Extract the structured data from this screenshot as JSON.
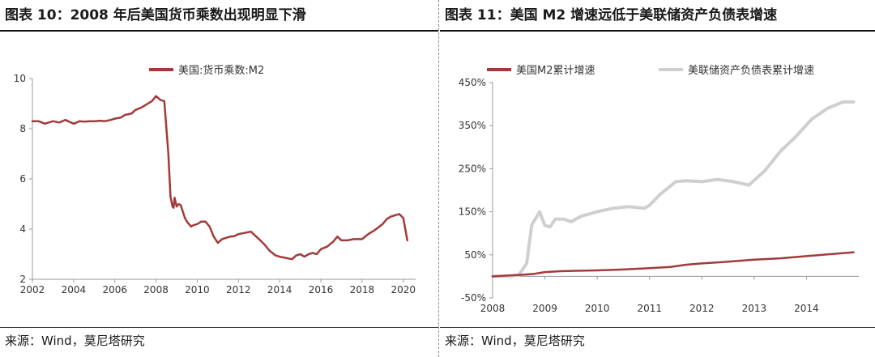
{
  "left": {
    "title": "图表 10：2008 年后美国货币乘数出现明显下滑",
    "source": "来源：Wind，莫尼塔研究"
  },
  "right": {
    "title": "图表 11：美国 M2 增速远低于美联储资产负债表增速",
    "source": "来源：Wind，莫尼塔研究"
  },
  "colors": {
    "m2": "#a33a3a",
    "fed": "#cfcfcf",
    "axis": "#9a9a9a",
    "text": "#333333"
  },
  "chart_data": [
    {
      "type": "line",
      "title": "",
      "xlabel": "",
      "ylabel": "",
      "xlim": [
        2002,
        2020.6
      ],
      "ylim": [
        2,
        10
      ],
      "xticks": [
        "2002",
        "2004",
        "2006",
        "2008",
        "2010",
        "2012",
        "2014",
        "2016",
        "2018",
        "2020"
      ],
      "yticks": [
        "2",
        "4",
        "6",
        "8",
        "10"
      ],
      "legend_position": "top",
      "series": [
        {
          "name": "美国:货币乘数:M2",
          "x": [
            2002.0,
            2002.3,
            2002.6,
            2003.0,
            2003.3,
            2003.6,
            2004.0,
            2004.3,
            2004.5,
            2004.8,
            2005.0,
            2005.3,
            2005.5,
            2005.8,
            2006.0,
            2006.3,
            2006.5,
            2006.8,
            2007.0,
            2007.3,
            2007.5,
            2007.8,
            2008.0,
            2008.2,
            2008.4,
            2008.6,
            2008.7,
            2008.8,
            2008.85,
            2008.9,
            2009.0,
            2009.1,
            2009.2,
            2009.3,
            2009.4,
            2009.5,
            2009.6,
            2009.7,
            2009.8,
            2010.0,
            2010.2,
            2010.4,
            2010.6,
            2010.8,
            2011.0,
            2011.2,
            2011.4,
            2011.6,
            2011.8,
            2012.0,
            2012.3,
            2012.6,
            2013.0,
            2013.3,
            2013.5,
            2013.8,
            2014.0,
            2014.3,
            2014.6,
            2014.8,
            2015.0,
            2015.2,
            2015.4,
            2015.6,
            2015.8,
            2016.0,
            2016.3,
            2016.6,
            2016.8,
            2017.0,
            2017.3,
            2017.6,
            2018.0,
            2018.3,
            2018.6,
            2019.0,
            2019.2,
            2019.4,
            2019.6,
            2019.8,
            2020.0,
            2020.2
          ],
          "y": [
            8.3,
            8.3,
            8.2,
            8.3,
            8.25,
            8.35,
            8.2,
            8.3,
            8.28,
            8.3,
            8.3,
            8.32,
            8.3,
            8.35,
            8.4,
            8.45,
            8.55,
            8.6,
            8.75,
            8.85,
            8.95,
            9.1,
            9.3,
            9.15,
            9.1,
            7.0,
            5.3,
            4.9,
            4.85,
            5.25,
            4.9,
            5.0,
            4.95,
            4.7,
            4.45,
            4.3,
            4.2,
            4.1,
            4.15,
            4.2,
            4.3,
            4.3,
            4.1,
            3.7,
            3.45,
            3.6,
            3.65,
            3.7,
            3.72,
            3.8,
            3.85,
            3.9,
            3.6,
            3.35,
            3.15,
            2.95,
            2.9,
            2.85,
            2.8,
            2.95,
            3.0,
            2.9,
            3.0,
            3.05,
            3.0,
            3.2,
            3.3,
            3.5,
            3.7,
            3.55,
            3.55,
            3.6,
            3.6,
            3.8,
            3.95,
            4.2,
            4.4,
            4.5,
            4.55,
            4.6,
            4.45,
            3.55
          ]
        }
      ]
    },
    {
      "type": "line",
      "title": "",
      "xlabel": "",
      "ylabel": "",
      "xlim": [
        2008,
        2015
      ],
      "ylim": [
        -50,
        450
      ],
      "xticks": [
        "2008",
        "2009",
        "2010",
        "2011",
        "2012",
        "2013",
        "2014"
      ],
      "yticks": [
        "-50%",
        "50%",
        "150%",
        "250%",
        "350%",
        "450%"
      ],
      "legend_position": "top",
      "series": [
        {
          "name": "美国M2累计增速",
          "x": [
            2008.0,
            2008.3,
            2008.6,
            2008.8,
            2009.0,
            2009.3,
            2009.6,
            2010.0,
            2010.5,
            2011.0,
            2011.4,
            2011.7,
            2012.0,
            2012.5,
            2013.0,
            2013.5,
            2014.0,
            2014.5,
            2014.9
          ],
          "y": [
            0,
            2,
            4,
            6,
            10,
            12,
            13,
            14,
            16,
            19,
            22,
            27,
            30,
            34,
            39,
            42,
            47,
            52,
            56
          ]
        },
        {
          "name": "美联储资产负债表累计增速",
          "x": [
            2008.0,
            2008.3,
            2008.5,
            2008.65,
            2008.75,
            2008.9,
            2009.0,
            2009.1,
            2009.2,
            2009.35,
            2009.5,
            2009.7,
            2010.0,
            2010.3,
            2010.6,
            2010.9,
            2011.0,
            2011.2,
            2011.5,
            2011.7,
            2012.0,
            2012.3,
            2012.6,
            2012.9,
            2013.2,
            2013.5,
            2013.8,
            2014.1,
            2014.4,
            2014.7,
            2014.9
          ],
          "y": [
            0,
            0,
            3,
            30,
            120,
            150,
            118,
            115,
            133,
            133,
            127,
            140,
            150,
            158,
            162,
            158,
            165,
            190,
            220,
            222,
            220,
            225,
            220,
            212,
            245,
            290,
            325,
            365,
            390,
            405,
            405
          ]
        }
      ]
    }
  ]
}
